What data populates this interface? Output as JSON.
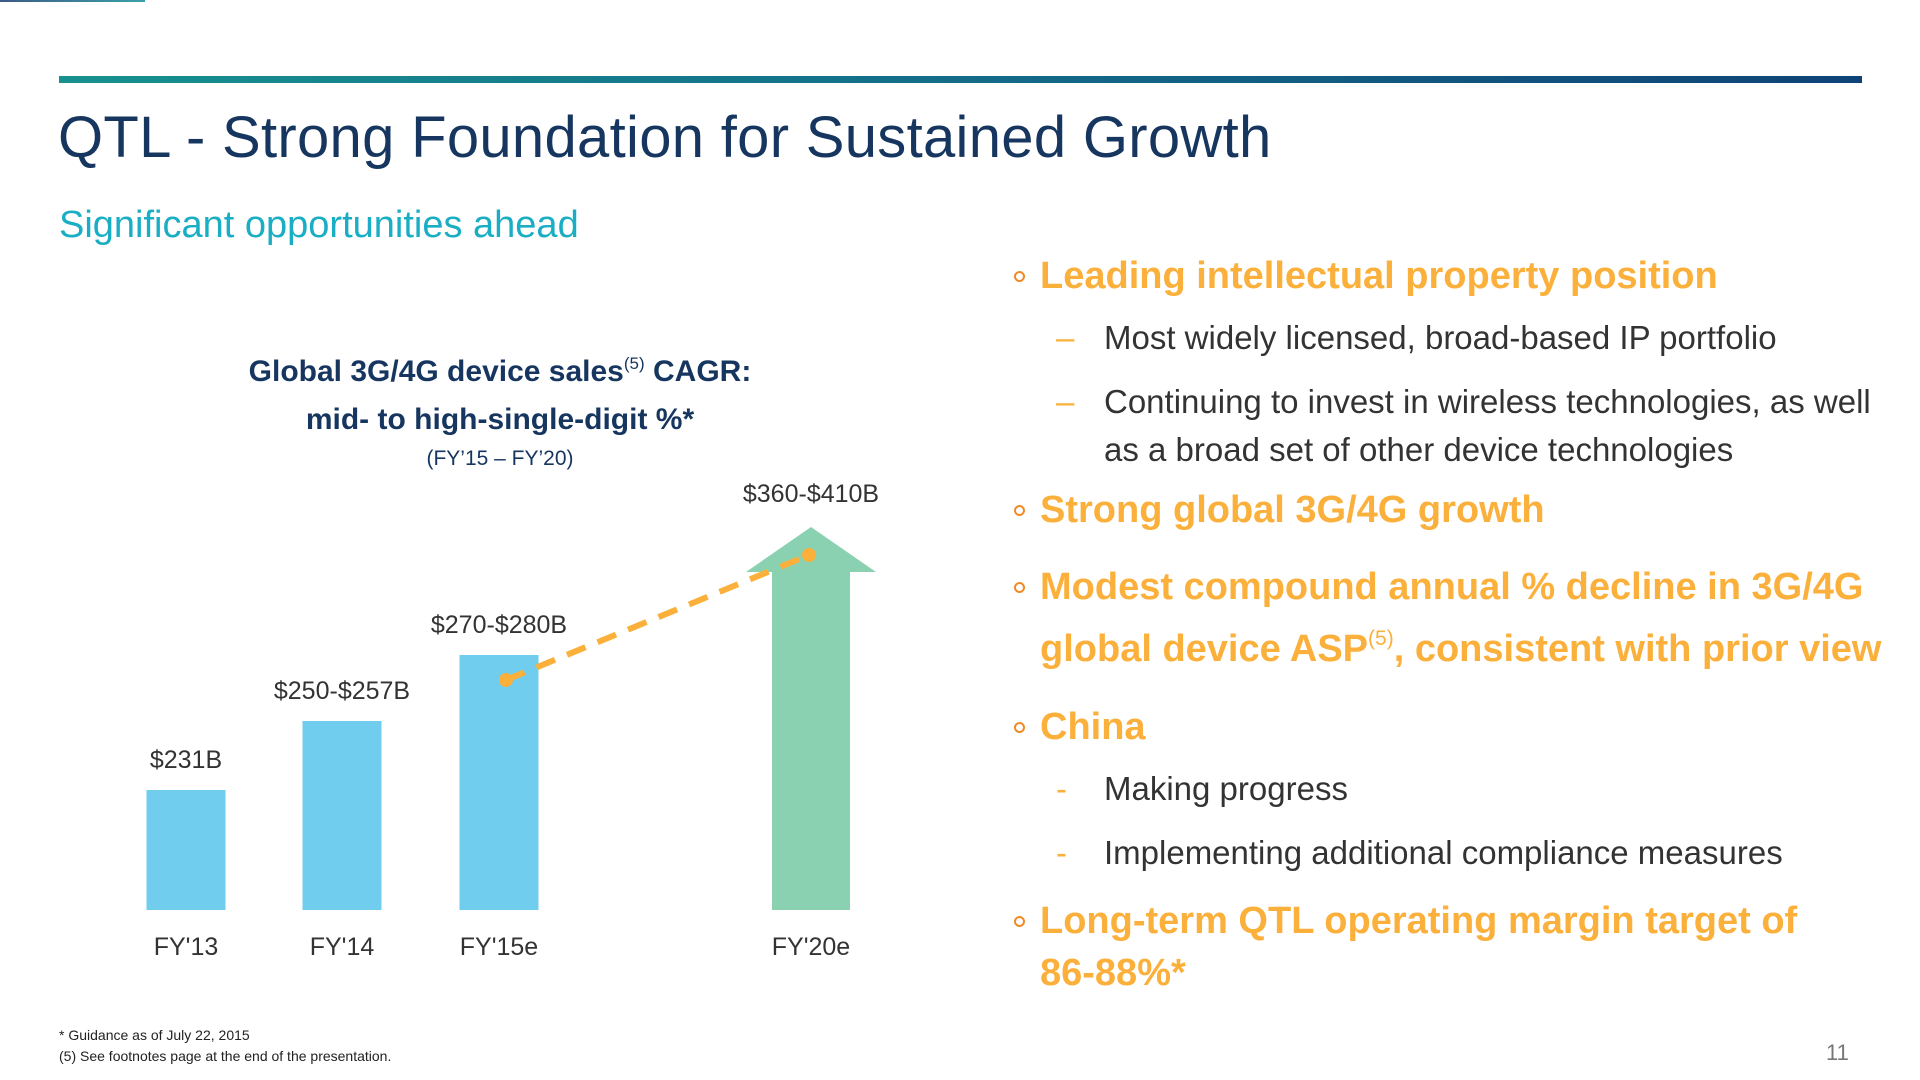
{
  "slide": {
    "title": "QTL - Strong Foundation for Sustained Growth",
    "subtitle": "Significant opportunities ahead",
    "page_number": "11"
  },
  "colors": {
    "title": "#16365f",
    "subtitle": "#19aec3",
    "accent_orange": "#fbb03b",
    "bar_historical": "#70cdee",
    "bar_forecast": "#8ad1b2",
    "trend_line": "#fbb03b"
  },
  "chart_heading": {
    "line1_prefix": "Global 3G/4G device sales",
    "line1_sup": "(5)",
    "line1_suffix": " CAGR:",
    "line2": "mid- to high-single-digit %*",
    "range": "(FY’15 – FY’20)"
  },
  "chart_data": {
    "type": "bar",
    "title": "Global 3G/4G device sales CAGR: mid- to high-single-digit %* (FY’15 – FY’20)",
    "xlabel": "",
    "ylabel": "Global 3G/4G device sales ($B)",
    "categories": [
      "FY'13",
      "FY'14",
      "FY'15e",
      "FY'20e"
    ],
    "value_labels": [
      "$231B",
      "$250-$257B",
      "$270-$280B",
      "$360-$410B"
    ],
    "values": [
      231,
      253.5,
      275,
      385
    ],
    "ranges": [
      [
        231,
        231
      ],
      [
        250,
        257
      ],
      [
        270,
        280
      ],
      [
        360,
        410
      ]
    ],
    "forecast": [
      false,
      false,
      false,
      true
    ],
    "forecast_style": "arrow",
    "trend": {
      "from": "FY'15e",
      "to": "FY'20e",
      "style": "dashed",
      "label": "CAGR mid- to high-single-digit %"
    },
    "grid": false,
    "legend": "none",
    "ylim": [
      0,
      410
    ]
  },
  "bullets": [
    {
      "heading": "Leading intellectual property position",
      "subs": [
        "Most widely licensed, broad-based IP portfolio",
        "Continuing to invest in wireless technologies, as well as a broad set of other device technologies"
      ]
    },
    {
      "heading": "Strong global 3G/4G growth",
      "subs": []
    },
    {
      "heading_prefix": "Modest compound annual % decline in 3G/4G global device ASP",
      "heading_sup": "(5)",
      "heading_suffix": ", consistent with prior view",
      "subs": []
    },
    {
      "heading": "China",
      "subs": [
        "Making progress",
        "Implementing additional compliance measures"
      ]
    },
    {
      "heading": "Long-term QTL operating margin target of 86-88%*",
      "subs": []
    }
  ],
  "footnotes": [
    "* Guidance as of July 22, 2015",
    "(5) See footnotes page at the end of the presentation."
  ]
}
